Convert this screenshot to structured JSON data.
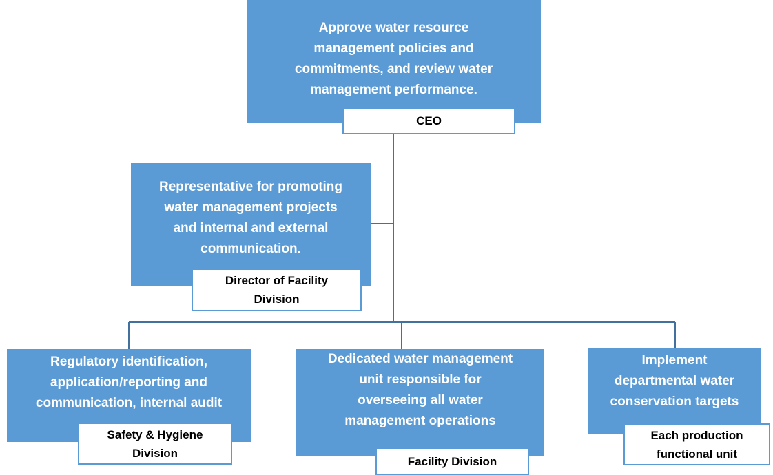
{
  "nodes": [
    {
      "description": [
        "Approve water resource",
        "management policies and",
        "commitments, and review water",
        "management performance."
      ],
      "label": [
        "CEO"
      ]
    },
    {
      "description": [
        "Representative for promoting",
        "water management projects",
        "and internal and external",
        "communication."
      ],
      "label": [
        "Director of Facility",
        "Division"
      ]
    },
    {
      "description": [
        "Regulatory identification,",
        "application/reporting and",
        "communication, internal audit"
      ],
      "label": [
        "Safety & Hygiene",
        "Division"
      ]
    },
    {
      "description": [
        "Dedicated water management",
        "unit responsible for",
        "overseeing all water",
        "management operations"
      ],
      "label": [
        "Facility Division"
      ]
    },
    {
      "description": [
        "Implement",
        "departmental water",
        "conservation targets"
      ],
      "label": [
        "Each production",
        "functional unit"
      ]
    }
  ]
}
